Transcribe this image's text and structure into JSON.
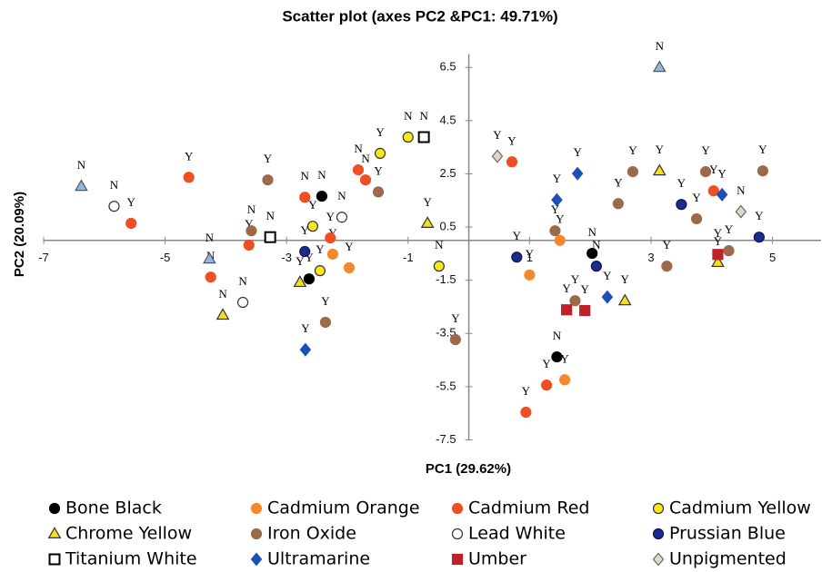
{
  "chart_data": {
    "type": "scatter",
    "title": "Scatter plot (axes PC2 &PC1: 49.71%)",
    "x_label": "PC1 (29.62%)",
    "y_label": "PC2 (20.09%)",
    "xlim": [
      -7,
      5.8
    ],
    "ylim": [
      -7.5,
      7
    ],
    "xticks": [
      -7,
      -5,
      -3,
      -1,
      1,
      3,
      5
    ],
    "yticks": [
      6.5,
      4.5,
      2.5,
      0.5,
      -1.5,
      -3.5,
      -5.5,
      -7.5
    ],
    "series": [
      {
        "name": "Bone Black",
        "marker": "circle",
        "color": "#000000",
        "stroke": "#000000",
        "x": [
          -2.42,
          -2.63,
          2.03,
          1.45
        ],
        "values": [
          1.66,
          -1.45,
          -0.49,
          -4.38
        ],
        "labels": [
          "N",
          "Y",
          "N",
          "N"
        ]
      },
      {
        "name": "Cadmium Orange",
        "marker": "circle",
        "color": "#f5882c",
        "stroke": "#f5882c",
        "x": [
          1.5,
          1.0,
          1.58,
          -2.24,
          -1.97
        ],
        "values": [
          0.0,
          -1.3,
          -5.24,
          -0.52,
          -1.03
        ],
        "labels": [
          "Y",
          "Y",
          "Y",
          "Y",
          "Y"
        ]
      },
      {
        "name": "Cadmium Red",
        "marker": "circle",
        "color": "#f04e23",
        "stroke": "#f04e23",
        "x": [
          -4.61,
          -5.56,
          -4.25,
          -3.62,
          -2.7,
          -2.28,
          -1.82,
          -1.7,
          0.71,
          1.28,
          0.94,
          4.03
        ],
        "values": [
          2.37,
          0.64,
          -1.38,
          -0.18,
          1.62,
          0.09,
          2.65,
          2.27,
          2.95,
          -5.44,
          -6.46,
          1.86
        ],
        "labels": [
          "Y",
          "Y",
          "N",
          "Y",
          "N",
          "Y",
          "N",
          "N",
          "Y",
          "Y",
          "Y",
          "Y"
        ]
      },
      {
        "name": "Cadmium Yellow",
        "marker": "circle",
        "color": "#f8e71c",
        "stroke": "#333333",
        "x": [
          -1.46,
          -1.0,
          -2.57,
          -2.45,
          -0.49
        ],
        "values": [
          3.27,
          3.88,
          0.53,
          -1.14,
          -0.97
        ],
        "labels": [
          "Y",
          "N",
          "Y",
          "Y",
          "N"
        ]
      },
      {
        "name": "Chrome Yellow",
        "marker": "triangle",
        "color": "#f5e11a",
        "stroke": "#333333",
        "x": [
          -4.05,
          -2.78,
          -0.68,
          3.14,
          2.57,
          4.1
        ],
        "values": [
          -2.81,
          -1.58,
          0.64,
          2.61,
          -2.27,
          -0.83
        ],
        "labels": [
          "N",
          "Y",
          "Y",
          "Y",
          "Y",
          "Y"
        ]
      },
      {
        "name": "Iron Oxide",
        "marker": "circle",
        "color": "#9c6a4a",
        "stroke": "#9c6a4a",
        "x": [
          -3.31,
          -3.58,
          -2.36,
          -1.49,
          -0.22,
          1.42,
          1.75,
          2.46,
          2.7,
          3.26,
          3.75,
          3.9,
          4.28,
          4.84
        ],
        "values": [
          2.27,
          0.36,
          -3.08,
          1.82,
          -3.73,
          0.36,
          -2.27,
          1.38,
          2.58,
          -0.97,
          0.81,
          2.58,
          -0.39,
          2.61
        ],
        "labels": [
          "Y",
          "N",
          "Y",
          "Y",
          "Y",
          "Y",
          "Y",
          "Y",
          "Y",
          "Y",
          "Y",
          "Y",
          "Y",
          "Y"
        ]
      },
      {
        "name": "Lead White",
        "marker": "circle",
        "color": "#ffffff",
        "stroke": "#333333",
        "x": [
          -5.84,
          -3.72,
          -2.09
        ],
        "values": [
          1.28,
          -2.33,
          0.87
        ],
        "labels": [
          "N",
          "N",
          "N"
        ]
      },
      {
        "name": "Prussian Blue",
        "marker": "circle",
        "color": "#1b2a8c",
        "stroke": "#0d1650",
        "x": [
          -2.7,
          0.79,
          2.1,
          3.5,
          4.78
        ],
        "values": [
          -0.42,
          -0.63,
          -0.97,
          1.35,
          0.12
        ],
        "labels": [
          "Y",
          "Y",
          "N",
          "Y",
          "Y"
        ]
      },
      {
        "name": "Titanium White",
        "marker": "square",
        "color": "#ffffff",
        "stroke": "#000000",
        "x": [
          -3.27,
          -0.74
        ],
        "values": [
          0.12,
          3.88
        ],
        "labels": [
          "N",
          "N"
        ]
      },
      {
        "name": "Ultramarine",
        "marker": "diamond",
        "color": "#1f4fb4",
        "stroke": "#1f4fb4",
        "x": [
          -2.69,
          1.45,
          1.79,
          2.28,
          4.17
        ],
        "values": [
          -4.11,
          1.52,
          2.51,
          -2.13,
          1.72
        ],
        "labels": [
          "Y",
          "Y",
          "Y",
          "Y",
          "Y"
        ]
      },
      {
        "name": "Umber",
        "marker": "square",
        "color": "#c0202a",
        "stroke": "#c0202a",
        "x": [
          1.61,
          1.91,
          4.1
        ],
        "values": [
          -2.61,
          -2.64,
          -0.53
        ],
        "labels": [
          "Y",
          "Y",
          "Y"
        ]
      },
      {
        "name": "Unpigmented",
        "marker": "diamond",
        "color": "#ddd8c8",
        "stroke": "#666666",
        "x": [
          0.47,
          4.48
        ],
        "values": [
          3.16,
          1.08
        ],
        "labels": [
          "Y",
          "N"
        ]
      },
      {
        "marker": "triangle",
        "color": "#8fb8dd",
        "stroke": "#555555",
        "x": [
          -6.38,
          -4.27,
          3.14
        ],
        "values": [
          2.03,
          -0.7,
          6.5
        ],
        "labels": [
          "N",
          "N",
          "N"
        ]
      }
    ]
  }
}
